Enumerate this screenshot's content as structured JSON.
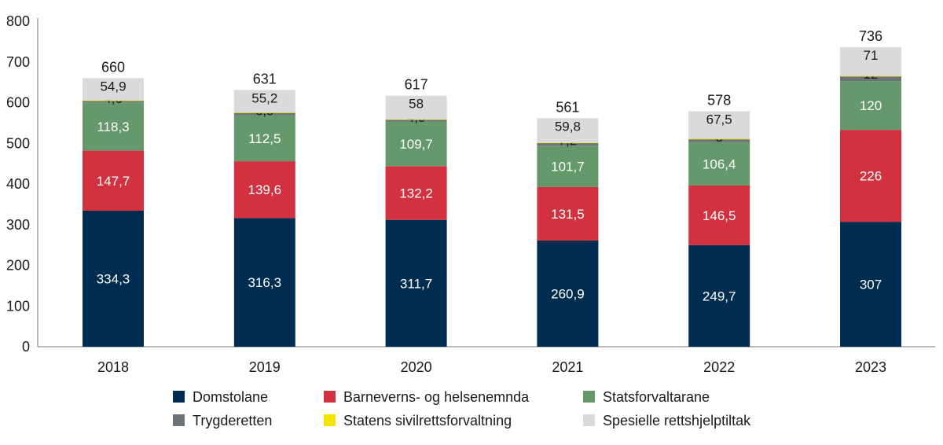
{
  "chart_data": {
    "type": "bar",
    "stacked": true,
    "title": "",
    "xlabel": "",
    "ylabel": "",
    "ylim": [
      0,
      800
    ],
    "yticks": [
      0,
      100,
      200,
      300,
      400,
      500,
      600,
      700,
      800
    ],
    "categories": [
      "2018",
      "2019",
      "2020",
      "2021",
      "2022",
      "2023"
    ],
    "totals": [
      "660",
      "631",
      "617",
      "561",
      "578",
      "736"
    ],
    "series": [
      {
        "name": "Domstolane",
        "color": "#002c4f",
        "label_color": "#ffffff",
        "values": [
          334.3,
          316.3,
          311.7,
          260.9,
          249.7,
          307
        ],
        "labels": [
          "334,3",
          "316,3",
          "311,7",
          "260,9",
          "249,7",
          "307"
        ]
      },
      {
        "name": "Barneverns- og helsenemnda",
        "color": "#d2323f",
        "label_color": "#ffffff",
        "values": [
          147.7,
          139.6,
          132.2,
          131.5,
          146.5,
          226
        ],
        "labels": [
          "147,7",
          "139,6",
          "132,2",
          "131,5",
          "146,5",
          "226"
        ]
      },
      {
        "name": "Statsforvaltarane",
        "color": "#65996c",
        "label_color": "#ffffff",
        "values": [
          118.3,
          112.5,
          109.7,
          101.7,
          106.4,
          120
        ],
        "labels": [
          "118,3",
          "112,5",
          "109,7",
          "101,7",
          "106,4",
          "120"
        ]
      },
      {
        "name": "Trygderetten",
        "color": "#6c7379",
        "label_color": "#1a1a1a",
        "values": [
          4.6,
          6.9,
          4.9,
          7.2,
          8,
          12
        ],
        "labels": [
          "4,6",
          "6,9",
          "4,9",
          "7,2",
          "8",
          "12"
        ]
      },
      {
        "name": "Statens sivilrettsforvaltning",
        "color": "#f2e500",
        "label_color": "#1a1a1a",
        "values": [
          0.5,
          0.5,
          0.5,
          0.5,
          0.5,
          0.5
        ],
        "labels": [
          "",
          "",
          "",
          "",
          "",
          ""
        ]
      },
      {
        "name": "Spesielle rettshjelptiltak",
        "color": "#dadada",
        "label_color": "#1a1a1a",
        "values": [
          54.9,
          55.2,
          58,
          59.8,
          67.5,
          71
        ],
        "labels": [
          "54,9",
          "55,2",
          "58",
          "59,8",
          "67,5",
          "71"
        ]
      }
    ],
    "legend": {
      "placement": "bottom",
      "columns": 3
    }
  }
}
